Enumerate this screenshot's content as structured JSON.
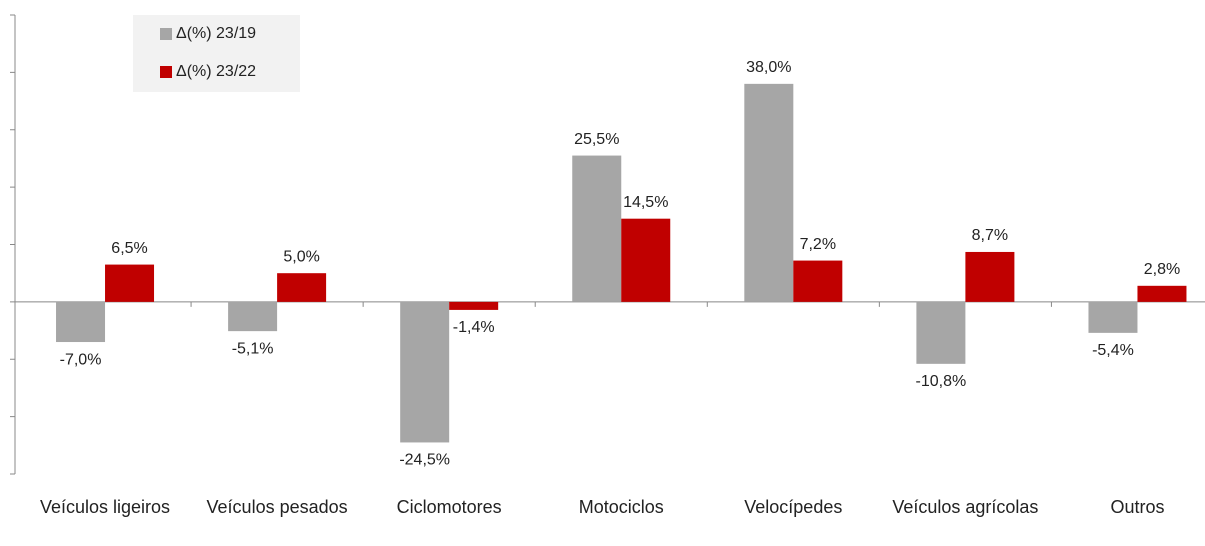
{
  "chart_data": {
    "type": "bar",
    "categories": [
      "Veículos ligeiros",
      "Veículos pesados",
      "Ciclomotores",
      "Motociclos",
      "Velocípedes",
      "Veículos agrícolas",
      "Outros"
    ],
    "series": [
      {
        "name": "Δ(%) 23/19",
        "color": "#a6a6a6",
        "values": [
          -7.0,
          -5.1,
          -24.5,
          25.5,
          38.0,
          -10.8,
          -5.4
        ],
        "value_labels": [
          "-7,0%",
          "-5,1%",
          "-24,5%",
          "25,5%",
          "38,0%",
          "-10,8%",
          "-5,4%"
        ]
      },
      {
        "name": "Δ(%) 23/22",
        "color": "#c00000",
        "values": [
          6.5,
          5.0,
          -1.4,
          14.5,
          7.2,
          8.7,
          2.8
        ],
        "value_labels": [
          "6,5%",
          "5,0%",
          "-1,4%",
          "14,5%",
          "7,2%",
          "8,7%",
          "2,8%"
        ]
      }
    ],
    "ylim": [
      -30,
      50
    ],
    "yticks": [
      -30,
      -20,
      -10,
      0,
      10,
      20,
      30,
      40,
      50
    ],
    "grid": false,
    "legend": "upper left"
  }
}
